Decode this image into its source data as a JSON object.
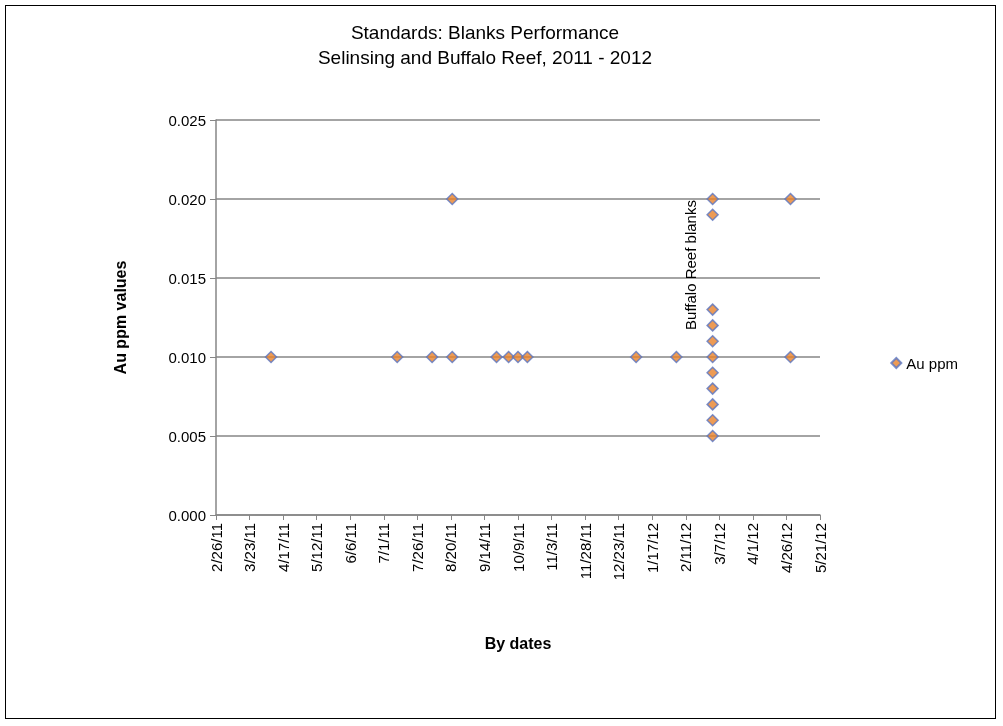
{
  "chart_data": {
    "type": "scatter",
    "title": "Standards: Blanks Performance",
    "subtitle": "Selinsing and Buffalo Reef, 2011 - 2012",
    "xlabel": "By dates",
    "ylabel": "Au ppm values",
    "annotations": [
      "Buffalo Reef blanks"
    ],
    "x": [
      "2011-04-08",
      "2011-07-11",
      "2011-08-06",
      "2011-08-21",
      "2011-08-21",
      "2011-09-23",
      "2011-10-02",
      "2011-10-09",
      "2011-10-16",
      "2012-01-05",
      "2012-02-04",
      "2012-03-02",
      "2012-03-02",
      "2012-03-02",
      "2012-03-02",
      "2012-03-02",
      "2012-03-02",
      "2012-03-02",
      "2012-03-02",
      "2012-03-02",
      "2012-03-02",
      "2012-03-02",
      "2012-04-29",
      "2012-04-29"
    ],
    "series": [
      {
        "name": "Au ppm",
        "color": "#e8822a",
        "values": [
          0.01,
          0.01,
          0.01,
          0.01,
          0.02,
          0.01,
          0.01,
          0.01,
          0.01,
          0.01,
          0.01,
          0.02,
          0.019,
          0.013,
          0.012,
          0.011,
          0.01,
          0.009,
          0.008,
          0.007,
          0.006,
          0.005,
          0.02,
          0.01
        ]
      }
    ],
    "xlim": [
      "2011-02-26",
      "2012-05-21"
    ],
    "xticks": [
      {
        "value": "2011-02-26",
        "label": "2/26/11"
      },
      {
        "value": "2011-03-23",
        "label": "3/23/11"
      },
      {
        "value": "2011-04-17",
        "label": "4/17/11"
      },
      {
        "value": "2011-05-12",
        "label": "5/12/11"
      },
      {
        "value": "2011-06-06",
        "label": "6/6/11"
      },
      {
        "value": "2011-07-01",
        "label": "7/1/11"
      },
      {
        "value": "2011-07-26",
        "label": "7/26/11"
      },
      {
        "value": "2011-08-20",
        "label": "8/20/11"
      },
      {
        "value": "2011-09-14",
        "label": "9/14/11"
      },
      {
        "value": "2011-10-09",
        "label": "10/9/11"
      },
      {
        "value": "2011-11-03",
        "label": "11/3/11"
      },
      {
        "value": "2011-11-28",
        "label": "11/28/11"
      },
      {
        "value": "2011-12-23",
        "label": "12/23/11"
      },
      {
        "value": "2012-01-17",
        "label": "1/17/12"
      },
      {
        "value": "2012-02-11",
        "label": "2/11/12"
      },
      {
        "value": "2012-03-07",
        "label": "3/7/12"
      },
      {
        "value": "2012-04-01",
        "label": "4/1/12"
      },
      {
        "value": "2012-04-26",
        "label": "4/26/12"
      },
      {
        "value": "2012-05-21",
        "label": "5/21/12"
      }
    ],
    "ylim": [
      0,
      0.025
    ],
    "yticks": [
      {
        "value": 0,
        "label": "0.000"
      },
      {
        "value": 0.005,
        "label": "0.005"
      },
      {
        "value": 0.01,
        "label": "0.010"
      },
      {
        "value": 0.015,
        "label": "0.015"
      },
      {
        "value": 0.02,
        "label": "0.020"
      },
      {
        "value": 0.025,
        "label": "0.025"
      }
    ],
    "grid": "y",
    "legend": "right",
    "marker": "diamond"
  }
}
